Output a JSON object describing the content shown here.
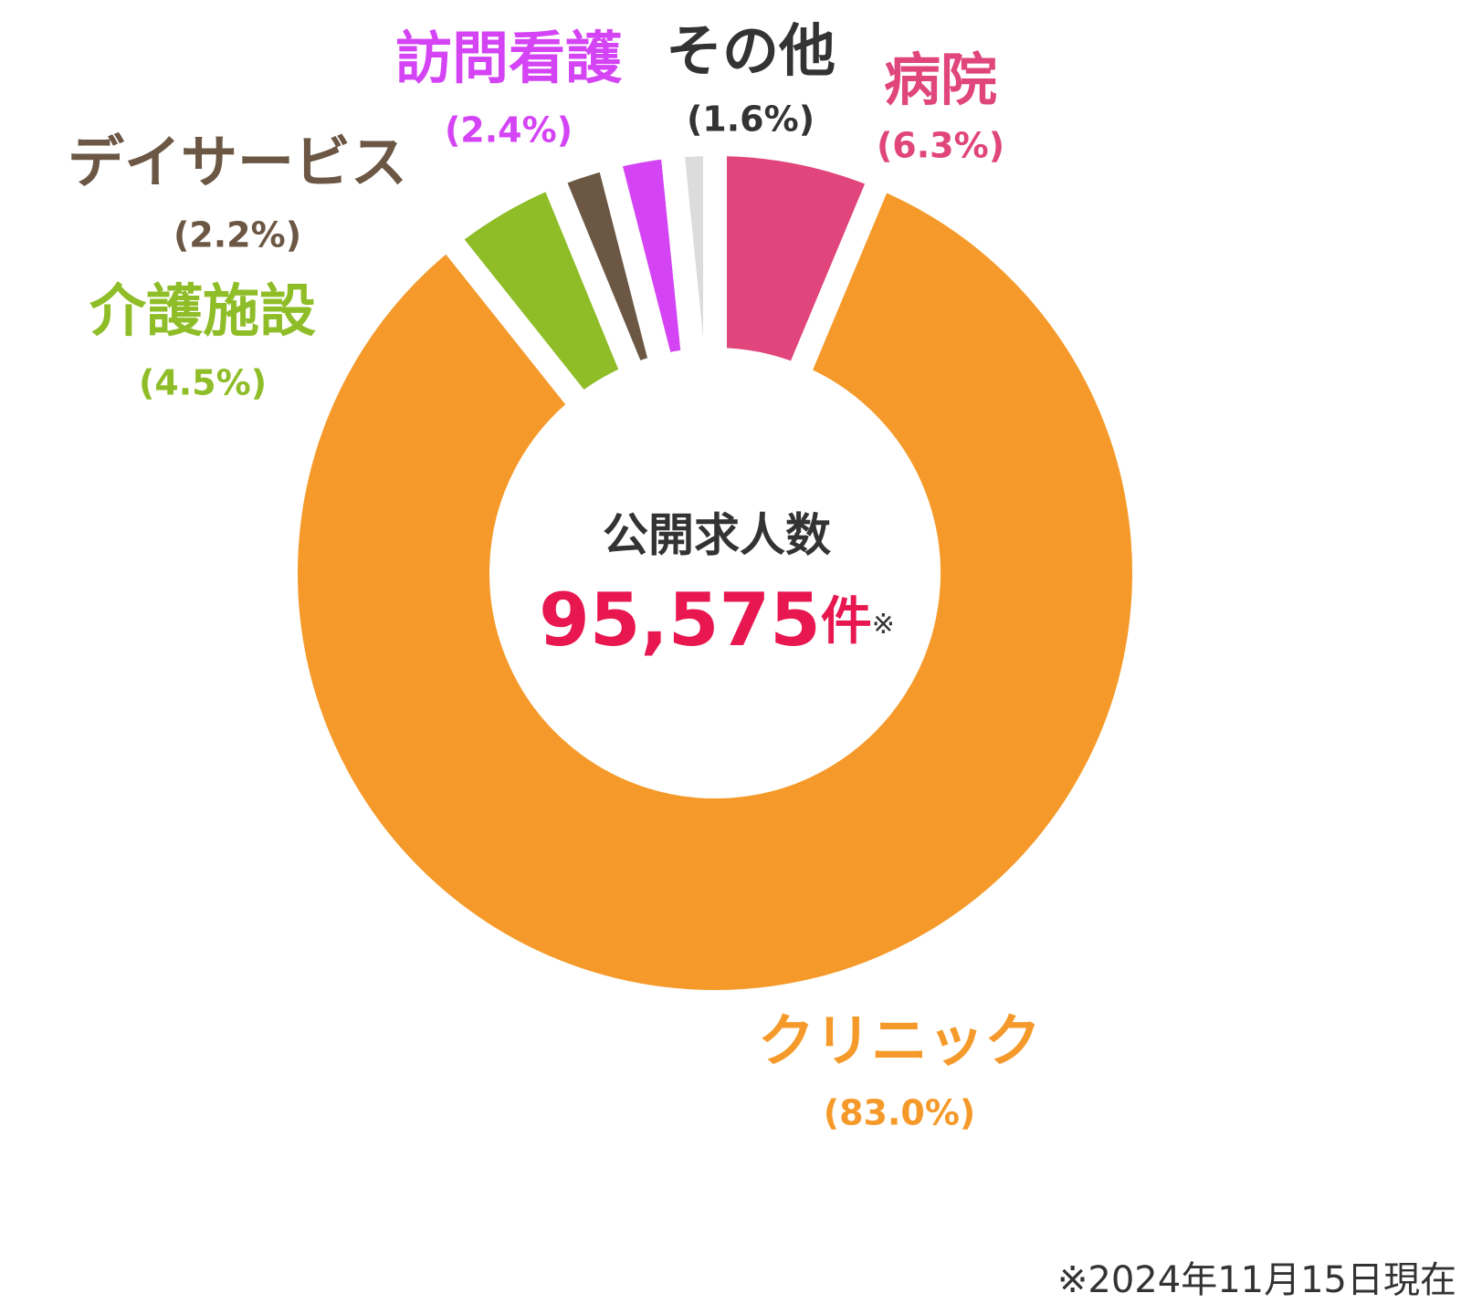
{
  "chart_data": {
    "type": "donut",
    "categories": [
      "病院",
      "クリニック",
      "介護施設",
      "デイサービス",
      "訪問看護",
      "その他"
    ],
    "values": [
      6.3,
      83.0,
      4.5,
      2.2,
      2.4,
      1.6
    ],
    "value_labels": [
      "(6.3%)",
      "(83.0%)",
      "(4.5%)",
      "(2.2%)",
      "(2.4%)",
      "(1.6%)"
    ],
    "colors": [
      "#e0457b",
      "#f59a2a",
      "#8fbd28",
      "#6b5744",
      "#d444f5",
      "#dcdcdc"
    ],
    "label_colors": [
      "#e0457b",
      "#f59a2a",
      "#8fbd28",
      "#6b5744",
      "#d444f5",
      "#333333"
    ],
    "center_title": "公開求人数",
    "center_value": "95,575",
    "center_unit": "件",
    "center_note": "※",
    "footnote": "※2024年11月15日現在"
  }
}
